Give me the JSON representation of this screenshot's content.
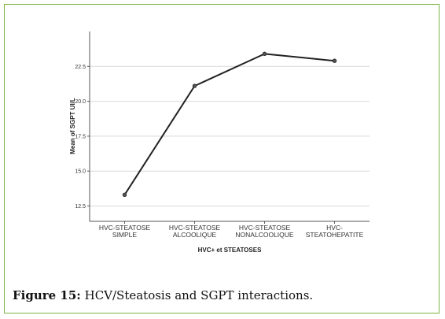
{
  "figure": {
    "label": "Figure 15:",
    "caption": "HCV/Steatosis and SGPT interactions.",
    "border_color": "#7cb342"
  },
  "chart_data": {
    "type": "line",
    "categories": [
      [
        "HVC-STEATOSE",
        "SIMPLE"
      ],
      [
        "HVC-STEATOSE",
        "ALCOOLIQUE"
      ],
      [
        "HVC-STEATOSE",
        "NONALCOOLIQUE"
      ],
      [
        "HVC-",
        "STEATOHEPATITE"
      ]
    ],
    "series": [
      {
        "values": [
          13.3,
          21.1,
          23.4,
          22.9
        ]
      }
    ],
    "xlabel": "HVC+ et STEATOSES",
    "ylabel": "Mean of SGPT UI/L",
    "yticks": [
      "12.5",
      "15.0",
      "17.5",
      "20.0",
      "22.5"
    ],
    "ylim": [
      11.4,
      25.0
    ],
    "grid": true,
    "line_color": "#222222",
    "grid_color": "#d9d9d9"
  }
}
